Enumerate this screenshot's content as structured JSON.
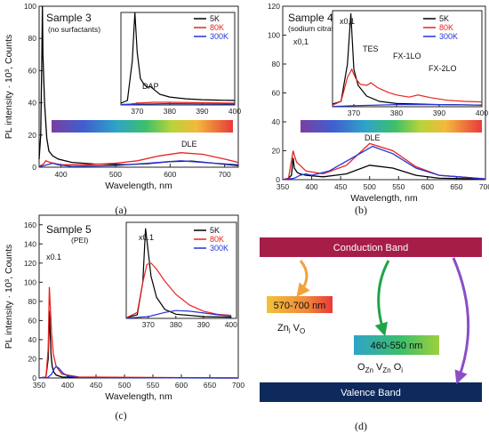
{
  "colors": {
    "s5K": "#000000",
    "s80K": "#e8231f",
    "s300K": "#2433d6",
    "conduction": "#a61d48",
    "valence": "#0e2a5c",
    "arrowOrange": "#f2a23c",
    "arrowGreen": "#1fa44a",
    "arrowPurple": "#8a4fc6"
  },
  "chart_data": [
    {
      "type": "line",
      "panel": "a",
      "label": "Sample 3",
      "sublabel": "(no surfactants)",
      "caption": "(a)",
      "xlabel": "Wavelength, nm",
      "ylabel": "PL intensity · 10³, Counts",
      "xlim": [
        360,
        725
      ],
      "ylim": [
        0,
        100
      ],
      "xticks": [
        400,
        500,
        600,
        700
      ],
      "yticks": [
        0,
        20,
        40,
        60,
        80,
        100
      ],
      "annotations": [
        "DLE"
      ],
      "legend": [
        "5K",
        "80K",
        "300K"
      ],
      "series": [
        {
          "name": "5K",
          "color": "#000000",
          "points": [
            [
              360,
              5
            ],
            [
              363,
              20
            ],
            [
              365,
              70
            ],
            [
              366,
              100
            ],
            [
              367,
              70
            ],
            [
              370,
              40
            ],
            [
              374,
              18
            ],
            [
              378,
              10
            ],
            [
              385,
              7
            ],
            [
              395,
              5
            ],
            [
              420,
              3
            ],
            [
              460,
              2
            ],
            [
              520,
              1.6
            ],
            [
              560,
              2.2
            ],
            [
              600,
              3.5
            ],
            [
              640,
              3.8
            ],
            [
              680,
              2.5
            ],
            [
              725,
              1
            ]
          ]
        },
        {
          "name": "80K",
          "color": "#e8231f",
          "points": [
            [
              360,
              0.5
            ],
            [
              368,
              2
            ],
            [
              372,
              4
            ],
            [
              380,
              3
            ],
            [
              400,
              1.5
            ],
            [
              450,
              1.5
            ],
            [
              500,
              2.5
            ],
            [
              540,
              4
            ],
            [
              580,
              7
            ],
            [
              620,
              9
            ],
            [
              660,
              8
            ],
            [
              700,
              5
            ],
            [
              725,
              3
            ]
          ]
        },
        {
          "name": "300K",
          "color": "#2433d6",
          "points": [
            [
              360,
              0.3
            ],
            [
              375,
              1.5
            ],
            [
              385,
              2.5
            ],
            [
              395,
              1.5
            ],
            [
              420,
              0.5
            ],
            [
              500,
              1
            ],
            [
              560,
              2.5
            ],
            [
              620,
              4
            ],
            [
              680,
              2.5
            ],
            [
              725,
              1.5
            ]
          ]
        }
      ],
      "inset": {
        "xlim": [
          365,
          400
        ],
        "ylim": [
          0,
          105
        ],
        "xticks": [
          370,
          380,
          390,
          400
        ],
        "annotations": [
          "DAP"
        ],
        "series": [
          {
            "name": "5K",
            "points": [
              [
                365,
                2
              ],
              [
                367,
                5
              ],
              [
                368.5,
                50
              ],
              [
                369.3,
                105
              ],
              [
                370,
                60
              ],
              [
                371,
                30
              ],
              [
                372,
                24
              ],
              [
                373,
                20
              ],
              [
                374,
                21
              ],
              [
                375,
                18
              ],
              [
                377,
                12
              ],
              [
                380,
                9
              ],
              [
                385,
                7
              ],
              [
                390,
                6
              ],
              [
                395,
                5.5
              ],
              [
                400,
                5
              ]
            ]
          },
          {
            "name": "80K",
            "points": [
              [
                365,
                0.5
              ],
              [
                368,
                1
              ],
              [
                370,
                2
              ],
              [
                375,
                3
              ],
              [
                380,
                3
              ],
              [
                390,
                2.5
              ],
              [
                400,
                2
              ]
            ]
          },
          {
            "name": "300K",
            "points": [
              [
                365,
                0.3
              ],
              [
                370,
                0.8
              ],
              [
                380,
                1.5
              ],
              [
                390,
                1.2
              ],
              [
                400,
                1
              ]
            ]
          }
        ]
      }
    },
    {
      "type": "line",
      "panel": "b",
      "label": "Sample 4",
      "sublabel": "(sodium citrate)",
      "caption": "(b)",
      "xlabel": "Wavelength, nm",
      "ylabel": "",
      "xlim": [
        350,
        700
      ],
      "ylim": [
        0,
        120
      ],
      "xticks": [
        350,
        400,
        450,
        500,
        550,
        600,
        650,
        700
      ],
      "yticks": [
        0,
        20,
        40,
        60,
        80,
        100,
        120
      ],
      "annotations": [
        "x0,1",
        "DLE"
      ],
      "legend": [
        "5K",
        "80K",
        "300K"
      ],
      "series": [
        {
          "name": "5K",
          "color": "#000000",
          "points": [
            [
              350,
              0
            ],
            [
              360,
              1
            ],
            [
              365,
              3
            ],
            [
              368,
              15
            ],
            [
              370,
              8
            ],
            [
              375,
              5
            ],
            [
              380,
              4
            ],
            [
              390,
              3
            ],
            [
              420,
              2
            ],
            [
              460,
              4
            ],
            [
              500,
              10
            ],
            [
              540,
              8
            ],
            [
              580,
              3
            ],
            [
              620,
              1
            ],
            [
              700,
              0.5
            ]
          ]
        },
        {
          "name": "80K",
          "color": "#e8231f",
          "points": [
            [
              350,
              0
            ],
            [
              360,
              1
            ],
            [
              368,
              20
            ],
            [
              370,
              17
            ],
            [
              374,
              12
            ],
            [
              380,
              10
            ],
            [
              390,
              6
            ],
            [
              420,
              4
            ],
            [
              460,
              10
            ],
            [
              500,
              25
            ],
            [
              540,
              20
            ],
            [
              580,
              9
            ],
            [
              620,
              3
            ],
            [
              700,
              0.5
            ]
          ]
        },
        {
          "name": "300K",
          "color": "#2433d6",
          "points": [
            [
              350,
              0
            ],
            [
              370,
              1
            ],
            [
              380,
              3
            ],
            [
              390,
              4
            ],
            [
              400,
              3
            ],
            [
              430,
              6
            ],
            [
              470,
              15
            ],
            [
              505,
              23
            ],
            [
              540,
              18
            ],
            [
              580,
              8
            ],
            [
              620,
              3
            ],
            [
              700,
              0.5
            ]
          ]
        }
      ],
      "inset": {
        "xlim": [
          365,
          400
        ],
        "ylim": [
          0,
          180
        ],
        "xticks": [
          370,
          380,
          390,
          400
        ],
        "annotations": [
          "x0,1",
          "TES",
          "FX-1LO",
          "FX-2LO"
        ],
        "series": [
          {
            "name": "5K",
            "points": [
              [
                365,
                5
              ],
              [
                367,
                10
              ],
              [
                368.5,
                80
              ],
              [
                369.3,
                175
              ],
              [
                370,
                70
              ],
              [
                371,
                40
              ],
              [
                373,
                20
              ],
              [
                376,
                10
              ],
              [
                380,
                6
              ],
              [
                390,
                4
              ],
              [
                400,
                3
              ]
            ]
          },
          {
            "name": "80K",
            "points": [
              [
                365,
                3
              ],
              [
                367,
                10
              ],
              [
                368.5,
                55
              ],
              [
                369.5,
                70
              ],
              [
                370.5,
                52
              ],
              [
                371.5,
                42
              ],
              [
                373,
                40
              ],
              [
                374,
                45
              ],
              [
                375.5,
                36
              ],
              [
                378,
                27
              ],
              [
                380,
                22
              ],
              [
                383,
                18
              ],
              [
                385,
                22
              ],
              [
                388,
                17
              ],
              [
                392,
                12
              ],
              [
                396,
                10
              ],
              [
                400,
                9
              ]
            ]
          },
          {
            "name": "300K",
            "points": [
              [
                365,
                0.5
              ],
              [
                370,
                2
              ],
              [
                380,
                4
              ],
              [
                390,
                4
              ],
              [
                400,
                3
              ]
            ]
          }
        ]
      }
    },
    {
      "type": "line",
      "panel": "c",
      "label": "Sample 5",
      "sublabel": "(PEI)",
      "caption": "(c)",
      "xlabel": "Wavelength, nm",
      "ylabel": "PL intensity · 10³, Counts",
      "xlim": [
        350,
        700
      ],
      "ylim": [
        0,
        170
      ],
      "xticks": [
        350,
        400,
        450,
        500,
        550,
        600,
        650,
        700
      ],
      "yticks": [
        0,
        20,
        40,
        60,
        80,
        100,
        120,
        140,
        160
      ],
      "annotations": [
        "x0.1"
      ],
      "legend": [
        "5K",
        "80K",
        "300K"
      ],
      "series": [
        {
          "name": "5K",
          "color": "#000000",
          "points": [
            [
              350,
              0
            ],
            [
              362,
              1
            ],
            [
              366,
              20
            ],
            [
              368,
              70
            ],
            [
              369.5,
              45
            ],
            [
              371,
              25
            ],
            [
              373,
              12
            ],
            [
              376,
              6
            ],
            [
              380,
              3
            ],
            [
              390,
              1
            ],
            [
              420,
              0.3
            ],
            [
              700,
              0
            ]
          ]
        },
        {
          "name": "80K",
          "color": "#e8231f",
          "points": [
            [
              350,
              0
            ],
            [
              362,
              1
            ],
            [
              366,
              30
            ],
            [
              368,
              95
            ],
            [
              370,
              70
            ],
            [
              372,
              45
            ],
            [
              375,
              25
            ],
            [
              380,
              12
            ],
            [
              390,
              4
            ],
            [
              420,
              1
            ],
            [
              700,
              0
            ]
          ]
        },
        {
          "name": "300K",
          "color": "#2433d6",
          "points": [
            [
              350,
              0
            ],
            [
              365,
              0.5
            ],
            [
              372,
              4
            ],
            [
              377,
              10
            ],
            [
              380,
              12
            ],
            [
              385,
              10
            ],
            [
              392,
              5
            ],
            [
              400,
              2
            ],
            [
              420,
              0.5
            ],
            [
              700,
              0
            ]
          ]
        }
      ],
      "inset": {
        "xlim": [
          362,
          402
        ],
        "ylim": [
          0,
          160
        ],
        "xticks": [
          370,
          380,
          390,
          400
        ],
        "annotations": [
          "x0.1"
        ],
        "series": [
          {
            "name": "5K",
            "points": [
              [
                362,
                1
              ],
              [
                366,
                6
              ],
              [
                368,
                60
              ],
              [
                369,
                150
              ],
              [
                370,
                110
              ],
              [
                371,
                70
              ],
              [
                373,
                35
              ],
              [
                376,
                15
              ],
              [
                380,
                7
              ],
              [
                390,
                3
              ],
              [
                400,
                2
              ]
            ]
          },
          {
            "name": "80K",
            "points": [
              [
                362,
                1
              ],
              [
                366,
                10
              ],
              [
                368,
                60
              ],
              [
                369.5,
                90
              ],
              [
                371,
                92
              ],
              [
                373,
                82
              ],
              [
                376,
                62
              ],
              [
                380,
                40
              ],
              [
                385,
                22
              ],
              [
                390,
                12
              ],
              [
                395,
                7
              ],
              [
                400,
                5
              ]
            ]
          },
          {
            "name": "300K",
            "points": [
              [
                362,
                0.5
              ],
              [
                370,
                3
              ],
              [
                376,
                10
              ],
              [
                380,
                13
              ],
              [
                385,
                12
              ],
              [
                390,
                9
              ],
              [
                395,
                6
              ],
              [
                400,
                4
              ]
            ]
          }
        ]
      }
    },
    {
      "type": "diagram",
      "panel": "d",
      "caption": "(d)",
      "conduction_band": "Conduction Band",
      "valence_band": "Valence Band",
      "level1": "570-700 nm",
      "level1_defect": {
        "main1": "Zn",
        "sub1": "i",
        "main2": " V",
        "sub2": "O"
      },
      "level2": "460-550 nm",
      "level2_defect": {
        "main1": "O",
        "sub1": "Zn",
        "main2": " V",
        "sub2": "Zn",
        "main3": " O",
        "sub3": "i"
      }
    }
  ]
}
